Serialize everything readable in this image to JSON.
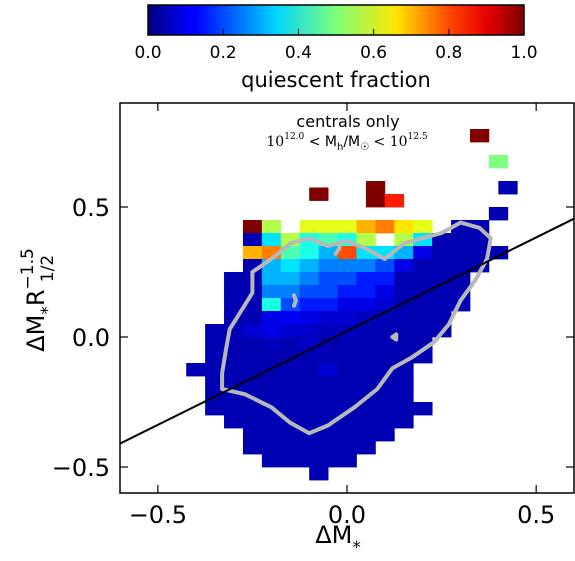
{
  "chart_data": {
    "type": "heatmap",
    "xlabel": "ΔM",
    "xlabel_sub": "*",
    "ylabel": "ΔM",
    "ylabel_sub1": "*",
    "ylabel_mid": "R",
    "ylabel_sup": "−1.5",
    "ylabel_sub2": "1/2",
    "xlim": [
      -0.6,
      0.6
    ],
    "ylim": [
      -0.6,
      0.9
    ],
    "xticks": [
      -0.5,
      0.0,
      0.5
    ],
    "xtick_labels": [
      "−0.5",
      "0.0",
      "0.5"
    ],
    "yticks": [
      -0.5,
      0.0,
      0.5
    ],
    "ytick_labels": [
      "−0.5",
      "0.0",
      "0.5"
    ],
    "colorbar": {
      "label": "quiescent fraction",
      "range": [
        0.0,
        1.0
      ],
      "ticks": [
        0.0,
        0.2,
        0.4,
        0.6,
        0.8,
        1.0
      ],
      "tick_labels": [
        "0.0",
        "0.2",
        "0.4",
        "0.6",
        "0.8",
        "1.0"
      ],
      "colormap": "jet"
    },
    "annotation": {
      "line1": "centrals only",
      "line2_base": "10",
      "line2_exp": "12.0",
      "line2_mid": " < M",
      "line2_mid_sub": "h",
      "line2_mid2": "/M",
      "line2_sun": "☉",
      "line2_end_base": " < 10",
      "line2_end_exp": "12.5"
    },
    "bin_size": 0.05,
    "cells": [
      [
        0.35,
        0.775,
        1.0
      ],
      [
        0.4,
        0.675,
        0.5
      ],
      [
        0.425,
        0.575,
        0.05
      ],
      [
        -0.075,
        0.55,
        1.0
      ],
      [
        0.075,
        0.575,
        1.0
      ],
      [
        0.075,
        0.525,
        1.0
      ],
      [
        0.125,
        0.525,
        0.85
      ],
      [
        0.4,
        0.475,
        0.05
      ],
      [
        -0.25,
        0.425,
        1.0
      ],
      [
        -0.2,
        0.425,
        0.55
      ],
      [
        -0.1,
        0.425,
        0.6
      ],
      [
        -0.05,
        0.425,
        0.6
      ],
      [
        0.0,
        0.425,
        0.6
      ],
      [
        0.05,
        0.425,
        0.7
      ],
      [
        0.1,
        0.425,
        0.75
      ],
      [
        0.15,
        0.425,
        0.65
      ],
      [
        0.2,
        0.425,
        0.6
      ],
      [
        0.3,
        0.425,
        0.05
      ],
      [
        0.35,
        0.425,
        0.05
      ],
      [
        -0.25,
        0.375,
        0.05
      ],
      [
        -0.2,
        0.375,
        0.35
      ],
      [
        -0.15,
        0.375,
        0.55
      ],
      [
        -0.1,
        0.375,
        0.4
      ],
      [
        -0.05,
        0.375,
        0.45
      ],
      [
        0.0,
        0.375,
        0.4
      ],
      [
        0.05,
        0.375,
        0.55
      ],
      [
        0.15,
        0.375,
        0.55
      ],
      [
        0.2,
        0.375,
        0.35
      ],
      [
        0.25,
        0.375,
        0.05
      ],
      [
        0.3,
        0.375,
        0.05
      ],
      [
        0.35,
        0.375,
        0.05
      ],
      [
        -0.25,
        0.325,
        0.7
      ],
      [
        -0.2,
        0.325,
        0.75
      ],
      [
        -0.15,
        0.325,
        0.45
      ],
      [
        -0.1,
        0.325,
        0.4
      ],
      [
        -0.05,
        0.325,
        0.3
      ],
      [
        0.0,
        0.325,
        0.8
      ],
      [
        0.05,
        0.325,
        0.35
      ],
      [
        0.1,
        0.325,
        0.35
      ],
      [
        0.15,
        0.325,
        0.3
      ],
      [
        0.2,
        0.325,
        0.1
      ],
      [
        0.25,
        0.325,
        0.05
      ],
      [
        0.3,
        0.325,
        0.05
      ],
      [
        0.35,
        0.325,
        0.05
      ],
      [
        0.4,
        0.325,
        0.05
      ],
      [
        -0.25,
        0.275,
        0.05
      ],
      [
        -0.2,
        0.275,
        0.3
      ],
      [
        -0.15,
        0.275,
        0.35
      ],
      [
        -0.1,
        0.275,
        0.3
      ],
      [
        -0.05,
        0.275,
        0.25
      ],
      [
        0.0,
        0.275,
        0.25
      ],
      [
        0.05,
        0.275,
        0.25
      ],
      [
        0.1,
        0.275,
        0.2
      ],
      [
        0.15,
        0.275,
        0.1
      ],
      [
        0.2,
        0.275,
        0.05
      ],
      [
        0.25,
        0.275,
        0.05
      ],
      [
        0.3,
        0.275,
        0.05
      ],
      [
        0.35,
        0.275,
        0.05
      ],
      [
        -0.3,
        0.225,
        0.05
      ],
      [
        -0.25,
        0.225,
        0.05
      ],
      [
        -0.2,
        0.225,
        0.3
      ],
      [
        -0.15,
        0.225,
        0.3
      ],
      [
        -0.1,
        0.225,
        0.25
      ],
      [
        -0.05,
        0.225,
        0.2
      ],
      [
        0.0,
        0.225,
        0.2
      ],
      [
        0.05,
        0.225,
        0.15
      ],
      [
        0.1,
        0.225,
        0.15
      ],
      [
        0.15,
        0.225,
        0.05
      ],
      [
        0.2,
        0.225,
        0.05
      ],
      [
        0.25,
        0.225,
        0.05
      ],
      [
        0.3,
        0.225,
        0.05
      ],
      [
        -0.3,
        0.175,
        0.05
      ],
      [
        -0.25,
        0.175,
        0.05
      ],
      [
        -0.2,
        0.175,
        0.25
      ],
      [
        -0.15,
        0.175,
        0.25
      ],
      [
        -0.1,
        0.175,
        0.2
      ],
      [
        -0.05,
        0.175,
        0.2
      ],
      [
        0.0,
        0.175,
        0.15
      ],
      [
        0.05,
        0.175,
        0.15
      ],
      [
        0.1,
        0.175,
        0.1
      ],
      [
        0.15,
        0.175,
        0.05
      ],
      [
        0.2,
        0.175,
        0.05
      ],
      [
        0.25,
        0.175,
        0.05
      ],
      [
        0.3,
        0.175,
        0.05
      ],
      [
        -0.3,
        0.125,
        0.05
      ],
      [
        -0.25,
        0.125,
        0.05
      ],
      [
        -0.2,
        0.125,
        0.4
      ],
      [
        -0.15,
        0.125,
        0.2
      ],
      [
        -0.1,
        0.125,
        0.15
      ],
      [
        -0.05,
        0.125,
        0.15
      ],
      [
        0.0,
        0.125,
        0.1
      ],
      [
        0.05,
        0.125,
        0.1
      ],
      [
        0.1,
        0.125,
        0.08
      ],
      [
        0.15,
        0.125,
        0.05
      ],
      [
        0.2,
        0.125,
        0.05
      ],
      [
        0.25,
        0.125,
        0.05
      ],
      [
        0.3,
        0.125,
        0.05
      ],
      [
        -0.3,
        0.075,
        0.05
      ],
      [
        -0.25,
        0.075,
        0.05
      ],
      [
        -0.2,
        0.075,
        0.1
      ],
      [
        -0.15,
        0.075,
        0.12
      ],
      [
        -0.1,
        0.075,
        0.1
      ],
      [
        -0.05,
        0.075,
        0.08
      ],
      [
        0.0,
        0.075,
        0.08
      ],
      [
        0.05,
        0.075,
        0.06
      ],
      [
        0.1,
        0.075,
        0.05
      ],
      [
        0.15,
        0.075,
        0.05
      ],
      [
        0.2,
        0.075,
        0.05
      ],
      [
        0.25,
        0.075,
        0.05
      ],
      [
        -0.35,
        0.025,
        0.05
      ],
      [
        -0.3,
        0.025,
        0.05
      ],
      [
        -0.25,
        0.025,
        0.08
      ],
      [
        -0.2,
        0.025,
        0.1
      ],
      [
        -0.15,
        0.025,
        0.08
      ],
      [
        -0.1,
        0.025,
        0.07
      ],
      [
        -0.05,
        0.025,
        0.06
      ],
      [
        0.0,
        0.025,
        0.06
      ],
      [
        0.05,
        0.025,
        0.05
      ],
      [
        0.1,
        0.025,
        0.05
      ],
      [
        0.15,
        0.025,
        0.05
      ],
      [
        0.2,
        0.025,
        0.05
      ],
      [
        0.25,
        0.025,
        0.05
      ],
      [
        -0.35,
        -0.025,
        0.05
      ],
      [
        -0.3,
        -0.025,
        0.05
      ],
      [
        -0.25,
        -0.025,
        0.05
      ],
      [
        -0.2,
        -0.025,
        0.06
      ],
      [
        -0.15,
        -0.025,
        0.05
      ],
      [
        -0.1,
        -0.025,
        0.07
      ],
      [
        -0.05,
        -0.025,
        0.05
      ],
      [
        0.0,
        -0.025,
        0.05
      ],
      [
        0.05,
        -0.025,
        0.05
      ],
      [
        0.1,
        -0.025,
        0.05
      ],
      [
        0.15,
        -0.025,
        0.05
      ],
      [
        0.2,
        -0.025,
        0.05
      ],
      [
        -0.35,
        -0.075,
        0.05
      ],
      [
        -0.3,
        -0.075,
        0.05
      ],
      [
        -0.25,
        -0.075,
        0.05
      ],
      [
        -0.2,
        -0.075,
        0.05
      ],
      [
        -0.15,
        -0.075,
        0.05
      ],
      [
        -0.1,
        -0.075,
        0.05
      ],
      [
        -0.05,
        -0.075,
        0.05
      ],
      [
        0.0,
        -0.075,
        0.05
      ],
      [
        0.05,
        -0.075,
        0.05
      ],
      [
        0.1,
        -0.075,
        0.05
      ],
      [
        0.15,
        -0.075,
        0.05
      ],
      [
        0.2,
        -0.075,
        0.05
      ],
      [
        -0.4,
        -0.125,
        0.05
      ],
      [
        -0.35,
        -0.125,
        0.05
      ],
      [
        -0.3,
        -0.125,
        0.05
      ],
      [
        -0.25,
        -0.125,
        0.05
      ],
      [
        -0.2,
        -0.125,
        0.05
      ],
      [
        -0.15,
        -0.125,
        0.05
      ],
      [
        -0.1,
        -0.125,
        0.05
      ],
      [
        -0.05,
        -0.125,
        0.08
      ],
      [
        0.0,
        -0.125,
        0.05
      ],
      [
        0.05,
        -0.125,
        0.05
      ],
      [
        0.1,
        -0.125,
        0.05
      ],
      [
        0.15,
        -0.125,
        0.05
      ],
      [
        -0.35,
        -0.175,
        0.05
      ],
      [
        -0.3,
        -0.175,
        0.05
      ],
      [
        -0.25,
        -0.175,
        0.05
      ],
      [
        -0.2,
        -0.175,
        0.05
      ],
      [
        -0.15,
        -0.175,
        0.05
      ],
      [
        -0.1,
        -0.175,
        0.05
      ],
      [
        -0.05,
        -0.175,
        0.05
      ],
      [
        0.0,
        -0.175,
        0.05
      ],
      [
        0.05,
        -0.175,
        0.05
      ],
      [
        0.1,
        -0.175,
        0.05
      ],
      [
        0.15,
        -0.175,
        0.05
      ],
      [
        -0.35,
        -0.225,
        0.05
      ],
      [
        -0.3,
        -0.225,
        0.05
      ],
      [
        -0.25,
        -0.225,
        0.05
      ],
      [
        -0.2,
        -0.225,
        0.05
      ],
      [
        -0.15,
        -0.225,
        0.05
      ],
      [
        -0.1,
        -0.225,
        0.05
      ],
      [
        -0.05,
        -0.225,
        0.05
      ],
      [
        0.0,
        -0.225,
        0.05
      ],
      [
        0.05,
        -0.225,
        0.05
      ],
      [
        0.1,
        -0.225,
        0.05
      ],
      [
        0.15,
        -0.225,
        0.05
      ],
      [
        -0.35,
        -0.275,
        0.05
      ],
      [
        -0.3,
        -0.275,
        0.05
      ],
      [
        -0.25,
        -0.275,
        0.05
      ],
      [
        -0.2,
        -0.275,
        0.05
      ],
      [
        -0.15,
        -0.275,
        0.05
      ],
      [
        -0.1,
        -0.275,
        0.05
      ],
      [
        -0.05,
        -0.275,
        0.05
      ],
      [
        0.0,
        -0.275,
        0.05
      ],
      [
        0.05,
        -0.275,
        0.05
      ],
      [
        0.1,
        -0.275,
        0.05
      ],
      [
        0.15,
        -0.275,
        0.05
      ],
      [
        0.2,
        -0.275,
        0.05
      ],
      [
        -0.3,
        -0.325,
        0.05
      ],
      [
        -0.25,
        -0.325,
        0.05
      ],
      [
        -0.2,
        -0.325,
        0.05
      ],
      [
        -0.15,
        -0.325,
        0.05
      ],
      [
        -0.1,
        -0.325,
        0.05
      ],
      [
        -0.05,
        -0.325,
        0.05
      ],
      [
        0.0,
        -0.325,
        0.05
      ],
      [
        0.05,
        -0.325,
        0.05
      ],
      [
        0.1,
        -0.325,
        0.05
      ],
      [
        0.15,
        -0.325,
        0.05
      ],
      [
        -0.25,
        -0.375,
        0.05
      ],
      [
        -0.2,
        -0.375,
        0.05
      ],
      [
        -0.15,
        -0.375,
        0.05
      ],
      [
        -0.1,
        -0.375,
        0.05
      ],
      [
        -0.05,
        -0.375,
        0.05
      ],
      [
        0.0,
        -0.375,
        0.05
      ],
      [
        0.05,
        -0.375,
        0.05
      ],
      [
        0.1,
        -0.375,
        0.05
      ],
      [
        -0.25,
        -0.425,
        0.05
      ],
      [
        -0.2,
        -0.425,
        0.05
      ],
      [
        -0.15,
        -0.425,
        0.05
      ],
      [
        -0.1,
        -0.425,
        0.05
      ],
      [
        -0.05,
        -0.425,
        0.05
      ],
      [
        0.0,
        -0.425,
        0.05
      ],
      [
        0.05,
        -0.425,
        0.05
      ],
      [
        -0.2,
        -0.475,
        0.05
      ],
      [
        -0.15,
        -0.475,
        0.05
      ],
      [
        -0.1,
        -0.475,
        0.05
      ],
      [
        -0.05,
        -0.475,
        0.05
      ],
      [
        0.0,
        -0.475,
        0.05
      ],
      [
        -0.075,
        -0.525,
        0.05
      ]
    ],
    "fit_line": {
      "x": [
        -0.6,
        0.6
      ],
      "y": [
        -0.41,
        0.455
      ]
    },
    "contours": [
      [
        [
          -0.25,
          0.25
        ],
        [
          -0.2,
          0.3
        ],
        [
          -0.15,
          0.36
        ],
        [
          -0.1,
          0.38
        ],
        [
          -0.05,
          0.35
        ],
        [
          0.0,
          0.37
        ],
        [
          0.05,
          0.34
        ],
        [
          0.1,
          0.3
        ],
        [
          0.15,
          0.36
        ],
        [
          0.2,
          0.38
        ],
        [
          0.25,
          0.4
        ],
        [
          0.3,
          0.44
        ],
        [
          0.35,
          0.42
        ],
        [
          0.38,
          0.38
        ],
        [
          0.37,
          0.3
        ],
        [
          0.34,
          0.22
        ],
        [
          0.3,
          0.14
        ],
        [
          0.27,
          0.05
        ],
        [
          0.23,
          -0.02
        ],
        [
          0.17,
          -0.08
        ],
        [
          0.12,
          -0.12
        ],
        [
          0.08,
          -0.2
        ],
        [
          0.02,
          -0.27
        ],
        [
          -0.05,
          -0.34
        ],
        [
          -0.1,
          -0.37
        ],
        [
          -0.15,
          -0.33
        ],
        [
          -0.2,
          -0.27
        ],
        [
          -0.27,
          -0.22
        ],
        [
          -0.33,
          -0.2
        ],
        [
          -0.33,
          -0.14
        ],
        [
          -0.32,
          -0.05
        ],
        [
          -0.31,
          0.03
        ],
        [
          -0.28,
          0.1
        ],
        [
          -0.25,
          0.17
        ],
        [
          -0.25,
          0.25
        ]
      ],
      [
        [
          0.12,
          0.0
        ],
        [
          0.13,
          0.01
        ],
        [
          0.13,
          -0.01
        ],
        [
          0.12,
          0.0
        ]
      ],
      [
        [
          -0.14,
          0.16
        ],
        [
          -0.135,
          0.14
        ],
        [
          -0.14,
          0.12
        ]
      ],
      [
        [
          -0.02,
          0.36
        ],
        [
          -0.02,
          0.34
        ],
        [
          -0.03,
          0.32
        ]
      ]
    ],
    "contour_color": "#b8b8b8"
  }
}
